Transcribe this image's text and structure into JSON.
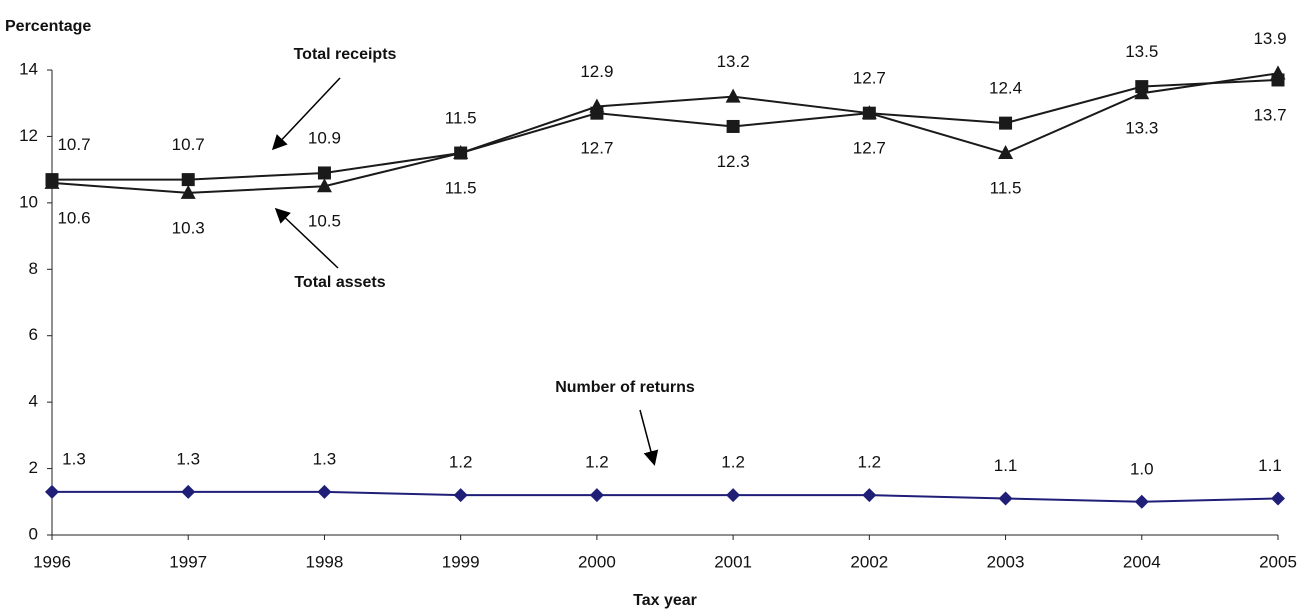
{
  "chart_data": {
    "type": "line",
    "y_axis_title": "Percentage",
    "x_axis_title": "Tax year",
    "x": [
      1996,
      1997,
      1998,
      1999,
      2000,
      2001,
      2002,
      2003,
      2004,
      2005
    ],
    "xlim": [
      1996,
      2005
    ],
    "xticks": [
      1996,
      1997,
      1998,
      1999,
      2000,
      2001,
      2002,
      2003,
      2004,
      2005
    ],
    "ylim": [
      0,
      14
    ],
    "yticks": [
      0,
      2,
      4,
      6,
      8,
      10,
      12,
      14
    ],
    "grid": false,
    "series": [
      {
        "name": "Total receipts",
        "color": "#1a1a1a",
        "marker": "square",
        "values": [
          10.7,
          10.7,
          10.9,
          11.5,
          12.7,
          12.3,
          12.7,
          12.4,
          13.5,
          13.7
        ],
        "value_labels": [
          "10.7",
          "10.7",
          "10.9",
          "11.5",
          "12.7",
          "12.3",
          "12.7",
          "12.4",
          "13.5",
          "13.7"
        ]
      },
      {
        "name": "Total assets",
        "color": "#1a1a1a",
        "marker": "triangle",
        "values": [
          10.6,
          10.3,
          10.5,
          11.5,
          12.9,
          13.2,
          12.7,
          11.5,
          13.3,
          13.9
        ],
        "value_labels": [
          "10.6",
          "10.3",
          "10.5",
          "11.5",
          "12.9",
          "13.2",
          "12.7",
          "11.5",
          "13.3",
          "13.9"
        ]
      },
      {
        "name": "Number of returns",
        "color": "#1f1f78",
        "marker": "diamond",
        "values": [
          1.3,
          1.3,
          1.3,
          1.2,
          1.2,
          1.2,
          1.2,
          1.1,
          1.0,
          1.1
        ],
        "value_labels": [
          "1.3",
          "1.3",
          "1.3",
          "1.2",
          "1.2",
          "1.2",
          "1.2",
          "1.1",
          "1.0",
          "1.1"
        ]
      }
    ]
  }
}
